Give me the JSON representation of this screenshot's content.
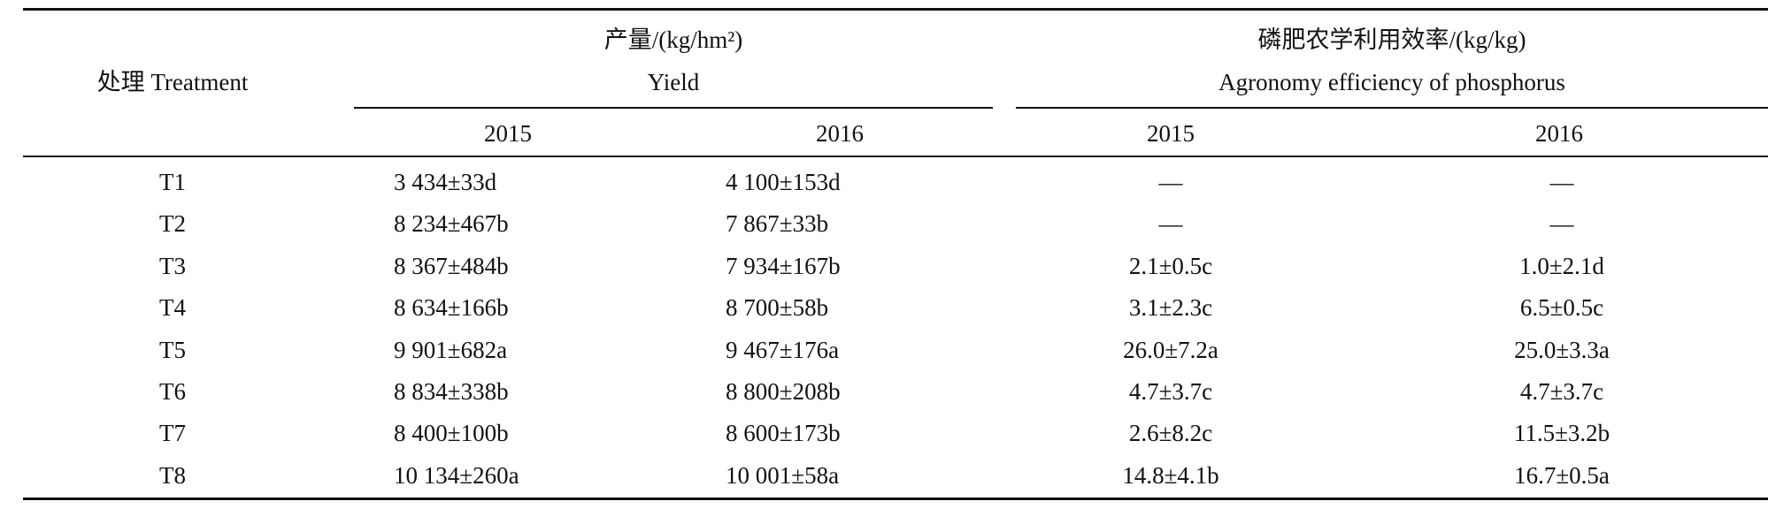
{
  "table": {
    "header": {
      "treatment": "处理 Treatment",
      "yield_cn": "产量/(kg/hm²)",
      "yield_en": "Yield",
      "ae_cn": "磷肥农学利用效率/(kg/kg)",
      "ae_en": "Agronomy efficiency of phosphorus",
      "years": [
        "2015",
        "2016",
        "2015",
        "2016"
      ]
    },
    "rows": [
      [
        "T1",
        "3 434±33d",
        "4 100±153d",
        "—",
        "—"
      ],
      [
        "T2",
        "8 234±467b",
        "7 867±33b",
        "—",
        "—"
      ],
      [
        "T3",
        "8 367±484b",
        "7 934±167b",
        "2.1±0.5c",
        "1.0±2.1d"
      ],
      [
        "T4",
        "8 634±166b",
        "8 700±58b",
        "3.1±2.3c",
        "6.5±0.5c"
      ],
      [
        "T5",
        "9 901±682a",
        "9 467±176a",
        "26.0±7.2a",
        "25.0±3.3a"
      ],
      [
        "T6",
        "8 834±338b",
        "8 800±208b",
        "4.7±3.7c",
        "4.7±3.7c"
      ],
      [
        "T7",
        "8 400±100b",
        "8 600±173b",
        "2.6±8.2c",
        "11.5±3.2b"
      ],
      [
        "T8",
        "10 134±260a",
        "10 001±58a",
        "14.8±4.1b",
        "16.7±0.5a"
      ]
    ]
  }
}
